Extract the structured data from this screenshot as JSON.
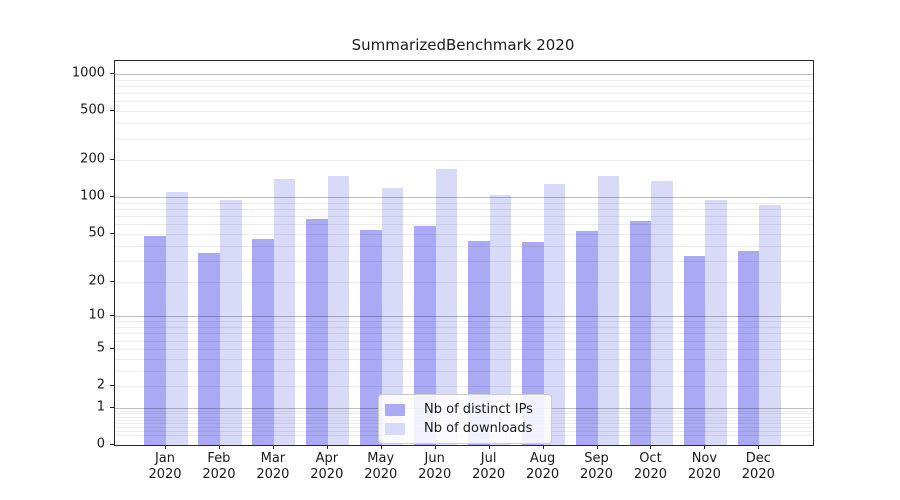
{
  "title": "SummarizedBenchmark 2020",
  "colors": {
    "ips_bar": "#a9a9f4",
    "downloads_bar": "#d9d9f8",
    "grid_major": "rgba(0,0,0,0.25)",
    "grid_minor": "rgba(0,0,0,0.07)",
    "spine": "#262626",
    "text": "#1a1a1a",
    "legend_border": "#cccccc"
  },
  "legend": {
    "items": [
      {
        "label": "Nb of distinct IPs",
        "swatch": "#a9a9f4"
      },
      {
        "label": "Nb of downloads",
        "swatch": "#d9d9f8"
      }
    ]
  },
  "y_axis": {
    "scale": "log1p",
    "tick_labels": [
      "1000",
      "500",
      "200",
      "100",
      "50",
      "20",
      "10",
      "5",
      "2",
      "1",
      "0"
    ],
    "tick_values": [
      1000,
      500,
      200,
      100,
      50,
      20,
      10,
      5,
      2,
      1,
      0
    ]
  },
  "x_axis": {
    "months": [
      "Jan",
      "Feb",
      "Mar",
      "Apr",
      "May",
      "Jun",
      "Jul",
      "Aug",
      "Sep",
      "Oct",
      "Nov",
      "Dec"
    ],
    "year": "2020"
  },
  "chart_data": {
    "type": "bar",
    "title": "SummarizedBenchmark 2020",
    "categories": [
      "Jan 2020",
      "Feb 2020",
      "Mar 2020",
      "Apr 2020",
      "May 2020",
      "Jun 2020",
      "Jul 2020",
      "Aug 2020",
      "Sep 2020",
      "Oct 2020",
      "Nov 2020",
      "Dec 2020"
    ],
    "series": [
      {
        "name": "Nb of distinct IPs",
        "color": "#a9a9f4",
        "values": [
          48,
          35,
          45,
          66,
          54,
          58,
          44,
          43,
          53,
          64,
          33,
          36
        ]
      },
      {
        "name": "Nb of downloads",
        "color": "#d9d9f8",
        "values": [
          110,
          95,
          142,
          148,
          119,
          170,
          105,
          127,
          150,
          135,
          94,
          86
        ]
      }
    ],
    "xlabel": "",
    "ylabel": "",
    "yscale": "log1p",
    "ylim": [
      0,
      1070
    ],
    "yticks": [
      1000,
      500,
      200,
      100,
      50,
      20,
      10,
      5,
      2,
      1,
      0
    ],
    "grid": "horizontal; major lines at 1, 10, 100, 1000; faint minor lines between",
    "legend_position": "inside lower-center"
  }
}
